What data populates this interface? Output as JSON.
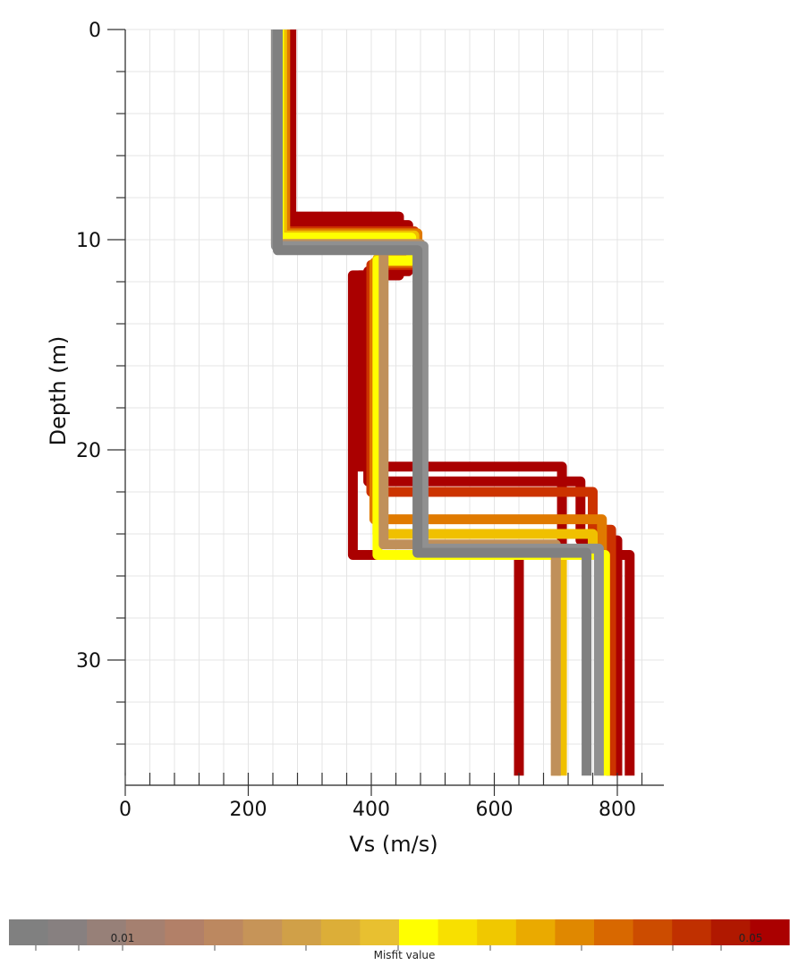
{
  "chart_data": {
    "type": "line",
    "xlabel": "Vs (m/s)",
    "ylabel": "Depth (m)",
    "xlim": [
      0,
      850
    ],
    "ylim": [
      35.5,
      0
    ],
    "y_inverted": true,
    "xticks": [
      0,
      200,
      400,
      600,
      800
    ],
    "yticks": [
      0,
      10,
      20,
      30
    ],
    "grid": true,
    "series": [
      {
        "color": "#aa0000",
        "points": [
          [
            270,
            0
          ],
          [
            270,
            8.9
          ],
          [
            445,
            8.9
          ],
          [
            445,
            11.7
          ],
          [
            370,
            11.7
          ],
          [
            370,
            25
          ],
          [
            640,
            25
          ],
          [
            640,
            35.5
          ]
        ]
      },
      {
        "color": "#aa0000",
        "points": [
          [
            270,
            0
          ],
          [
            270,
            8.9
          ],
          [
            445,
            8.9
          ],
          [
            445,
            11.7
          ],
          [
            380,
            11.7
          ],
          [
            380,
            20.8
          ],
          [
            710,
            20.8
          ],
          [
            710,
            25
          ],
          [
            820,
            25
          ],
          [
            820,
            35.5
          ]
        ]
      },
      {
        "color": "#aa0000",
        "points": [
          [
            255,
            0
          ],
          [
            255,
            9.3
          ],
          [
            460,
            9.3
          ],
          [
            460,
            11.5
          ],
          [
            395,
            11.5
          ],
          [
            395,
            21.5
          ],
          [
            740,
            21.5
          ],
          [
            740,
            24.3
          ],
          [
            800,
            24.3
          ],
          [
            800,
            35.5
          ]
        ]
      },
      {
        "color": "#cc3300",
        "points": [
          [
            255,
            0
          ],
          [
            255,
            9.6
          ],
          [
            470,
            9.6
          ],
          [
            470,
            11.2
          ],
          [
            400,
            11.2
          ],
          [
            400,
            22
          ],
          [
            760,
            22
          ],
          [
            760,
            23.8
          ],
          [
            790,
            23.8
          ],
          [
            790,
            35.5
          ]
        ]
      },
      {
        "color": "#e07a00",
        "points": [
          [
            260,
            0
          ],
          [
            260,
            9.7
          ],
          [
            475,
            9.7
          ],
          [
            475,
            11.1
          ],
          [
            405,
            11.1
          ],
          [
            405,
            23.3
          ],
          [
            775,
            23.3
          ],
          [
            775,
            25
          ],
          [
            700,
            25
          ],
          [
            700,
            35.5
          ]
        ]
      },
      {
        "color": "#f0c000",
        "points": [
          [
            255,
            0
          ],
          [
            255,
            9.8
          ],
          [
            470,
            9.8
          ],
          [
            470,
            10.9
          ],
          [
            410,
            10.9
          ],
          [
            410,
            24
          ],
          [
            760,
            24
          ],
          [
            760,
            25
          ],
          [
            710,
            25
          ],
          [
            710,
            35.5
          ]
        ]
      },
      {
        "color": "#ffff00",
        "points": [
          [
            250,
            0
          ],
          [
            250,
            9.9
          ],
          [
            465,
            9.9
          ],
          [
            465,
            11
          ],
          [
            410,
            11
          ],
          [
            410,
            25
          ],
          [
            780,
            25
          ],
          [
            780,
            35.5
          ]
        ]
      },
      {
        "color": "#c0905a",
        "points": [
          [
            245,
            0
          ],
          [
            245,
            10.2
          ],
          [
            480,
            10.2
          ],
          [
            480,
            10.5
          ],
          [
            420,
            10.5
          ],
          [
            420,
            24.5
          ],
          [
            700,
            24.5
          ],
          [
            700,
            35.5
          ]
        ]
      },
      {
        "color": "#909090",
        "points": [
          [
            245,
            0
          ],
          [
            245,
            10.3
          ],
          [
            485,
            10.3
          ],
          [
            485,
            24.7
          ],
          [
            770,
            24.7
          ],
          [
            770,
            35.5
          ]
        ]
      },
      {
        "color": "#808080",
        "points": [
          [
            248,
            0
          ],
          [
            248,
            10.5
          ],
          [
            475,
            10.5
          ],
          [
            475,
            24.9
          ],
          [
            750,
            24.9
          ],
          [
            750,
            35.5
          ]
        ]
      }
    ],
    "colorbar": {
      "label": "Misfit value",
      "tick_labels": [
        "0.01",
        "0.05"
      ],
      "colors": [
        "#808080",
        "#878080",
        "#978078",
        "#a58070",
        "#b28068",
        "#bc8860",
        "#c69458",
        "#d0a048",
        "#dcae38",
        "#e8c030",
        "#ffff00",
        "#f8e000",
        "#f0c800",
        "#eaaa00",
        "#e08800",
        "#d86800",
        "#cc4c00",
        "#c03000",
        "#b01800",
        "#aa0000"
      ]
    }
  }
}
